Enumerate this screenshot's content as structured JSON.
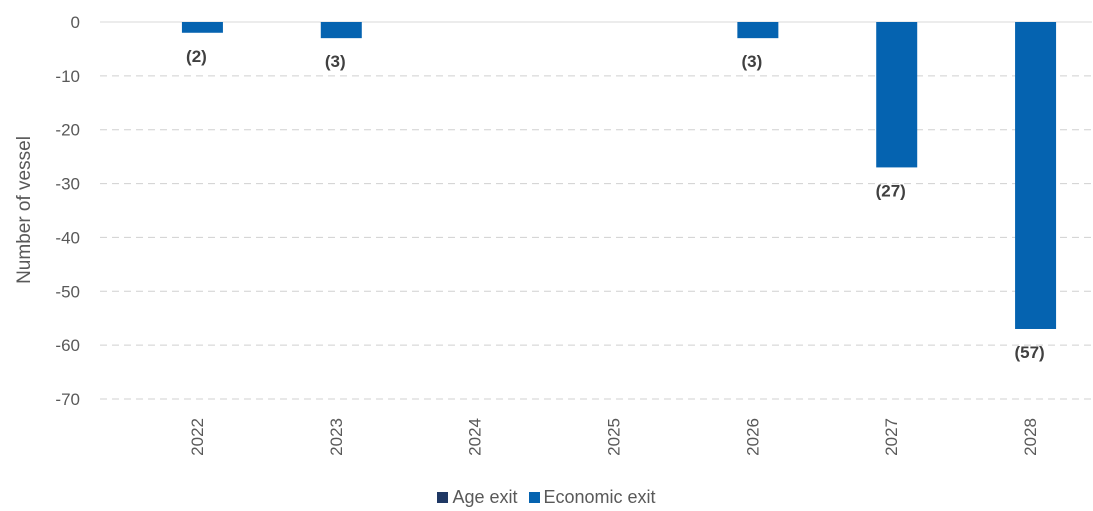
{
  "chart_data": {
    "type": "bar",
    "categories": [
      "2022",
      "2023",
      "2024",
      "2025",
      "2026",
      "2027",
      "2028"
    ],
    "series": [
      {
        "name": "Age exit",
        "values": [
          0,
          0,
          0,
          0,
          0,
          0,
          0
        ],
        "color": "#1F3864"
      },
      {
        "name": "Economic exit",
        "values": [
          -2,
          -3,
          0,
          0,
          -3,
          -27,
          -57
        ],
        "color": "#0563B0"
      }
    ],
    "data_labels": [
      "(2)",
      "(3)",
      "",
      "",
      "(3)",
      "(27)",
      "(57)"
    ],
    "ylabel": "Number of vessel",
    "ylim": [
      -70,
      0
    ],
    "yticks": [
      0,
      -10,
      -20,
      -30,
      -40,
      -50,
      -60,
      -70
    ],
    "grid": true,
    "legend_position": "bottom"
  }
}
